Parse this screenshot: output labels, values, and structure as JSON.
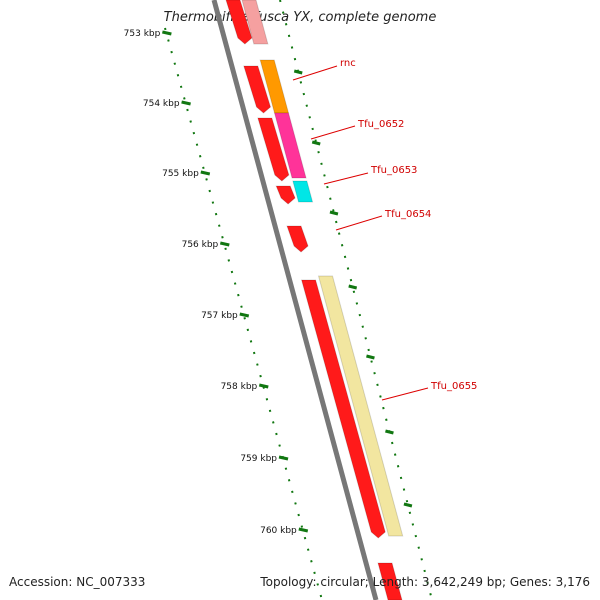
{
  "title": "Thermobifida fusca YX, complete genome",
  "footer": {
    "accession": "Accession: NC_007333",
    "summary": "Topology: circular; Length: 3,642,249 bp; Genes: 3,176"
  },
  "scale": {
    "tick_labels": [
      "753 kbp",
      "754 kbp",
      "755 kbp",
      "756 kbp",
      "757 kbp",
      "758 kbp",
      "759 kbp",
      "760 kbp"
    ]
  },
  "colors": {
    "cds": "#ff1a1a",
    "backbone": "#777777",
    "scale_ticks": "#117711",
    "label_text": "#d00000",
    "leader_line": "#dd0000",
    "rnc": "#ff9900",
    "Tfu_0652": "#ff3399",
    "Tfu_0653": "#00e6e6",
    "Tfu_0654": "#ffffff",
    "Tfu_0655": "#f2e6a0"
  },
  "genes": [
    {
      "name": "rnc"
    },
    {
      "name": "Tfu_0652"
    },
    {
      "name": "Tfu_0653"
    },
    {
      "name": "Tfu_0654"
    },
    {
      "name": "Tfu_0655"
    }
  ]
}
